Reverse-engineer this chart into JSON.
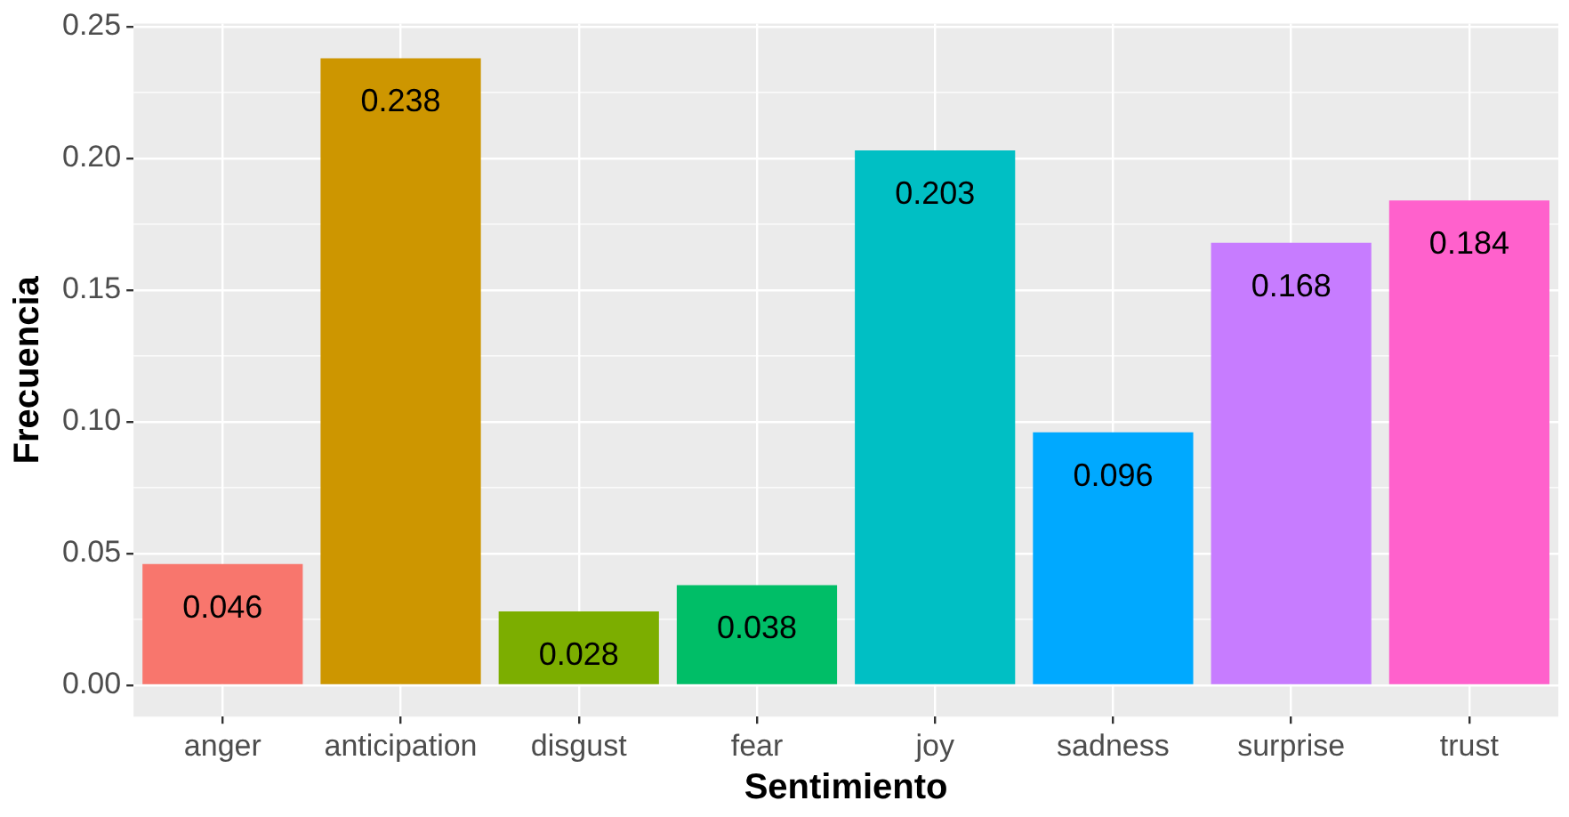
{
  "chart_data": {
    "type": "bar",
    "xlabel": "Sentimiento",
    "ylabel": "Frecuencia",
    "categories": [
      "anger",
      "anticipation",
      "disgust",
      "fear",
      "joy",
      "sadness",
      "surprise",
      "trust"
    ],
    "values": [
      0.046,
      0.238,
      0.028,
      0.038,
      0.203,
      0.096,
      0.168,
      0.184
    ],
    "colors": [
      "#f8766d",
      "#cd9600",
      "#7cae00",
      "#00be67",
      "#00bfc4",
      "#00a9ff",
      "#c77cff",
      "#ff61cc"
    ],
    "ylim": [
      -0.0119,
      0.2512
    ],
    "yticks": [
      {
        "value": 0,
        "label": "0.00"
      },
      {
        "value": 0.05,
        "label": "0.05"
      },
      {
        "value": 0.1,
        "label": "0.10"
      },
      {
        "value": 0.15,
        "label": "0.15"
      },
      {
        "value": 0.2,
        "label": "0.20"
      },
      {
        "value": 0.25,
        "label": "0.25"
      }
    ],
    "grid": true,
    "data_labels": true
  }
}
